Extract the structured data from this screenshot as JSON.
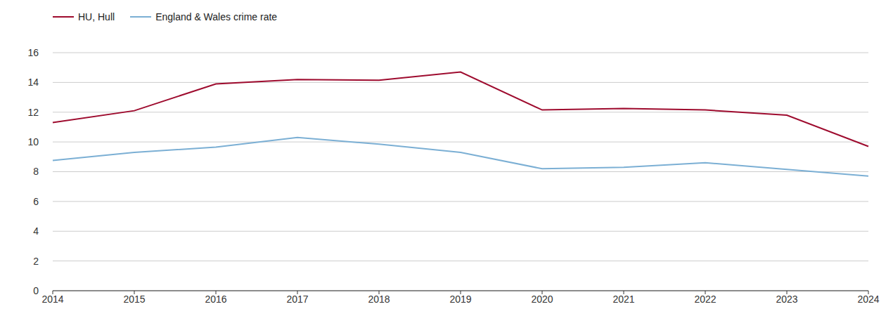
{
  "chart_data": {
    "type": "line",
    "categories": [
      "2014",
      "2015",
      "2016",
      "2017",
      "2018",
      "2019",
      "2020",
      "2021",
      "2022",
      "2023",
      "2024"
    ],
    "series": [
      {
        "name": "HU, Hull",
        "color": "#9e0b2e",
        "values": [
          11.3,
          12.1,
          13.9,
          14.2,
          14.15,
          14.7,
          12.15,
          12.25,
          12.15,
          11.8,
          9.7
        ]
      },
      {
        "name": "England & Wales crime rate",
        "color": "#7bafd4",
        "values": [
          8.75,
          9.3,
          9.65,
          10.3,
          9.85,
          9.3,
          8.2,
          8.3,
          8.6,
          8.15,
          7.7
        ]
      }
    ],
    "ylim": [
      0,
      16
    ],
    "yticks": [
      0,
      2,
      4,
      6,
      8,
      10,
      12,
      14,
      16
    ],
    "grid": true,
    "legend": "top-left"
  }
}
